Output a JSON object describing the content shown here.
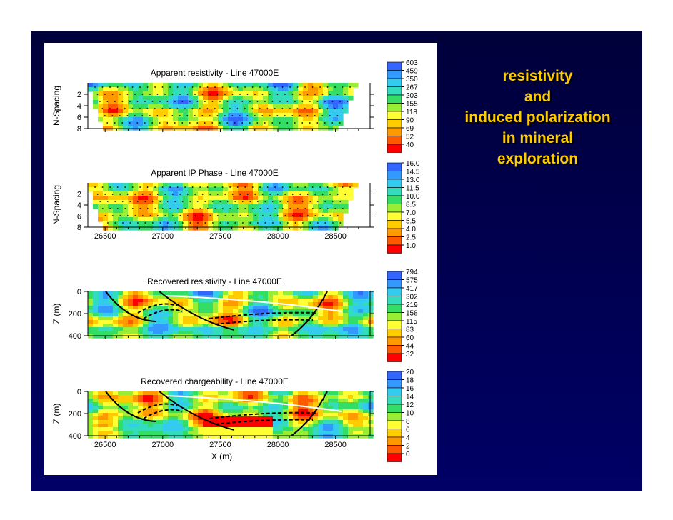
{
  "slide": {
    "side_title_lines": [
      "resistivity",
      "and",
      "induced polarization",
      "in mineral",
      "exploration"
    ]
  },
  "colors": {
    "background": "#000050",
    "side_title": "#ffcc00",
    "panel": "#ffffff"
  },
  "chart_data": [
    {
      "type": "heatmap",
      "title": "Apparent resistivity - Line 47000E",
      "ylabel": "N-Spacing",
      "xlabel": "",
      "xlim": [
        26350,
        28800
      ],
      "ylim": [
        8,
        0
      ],
      "y_ticks": [
        "2",
        "4",
        "6",
        "8"
      ],
      "x_ticks": [],
      "colorbar": [
        "603",
        "459",
        "350",
        "267",
        "203",
        "155",
        "118",
        "90",
        "69",
        "52",
        "40"
      ]
    },
    {
      "type": "heatmap",
      "title": "Apparent IP Phase - Line 47000E",
      "ylabel": "N-Spacing",
      "xlabel": "",
      "xlim": [
        26350,
        28800
      ],
      "ylim": [
        8,
        0
      ],
      "y_ticks": [
        "2",
        "4",
        "6",
        "8"
      ],
      "x_ticks": [
        "26500",
        "27000",
        "27500",
        "28000",
        "28500"
      ],
      "colorbar": [
        "16.0",
        "14.5",
        "13.0",
        "11.5",
        "10.0",
        "8.5",
        "7.0",
        "5.5",
        "4.0",
        "2.5",
        "1.0"
      ]
    },
    {
      "type": "heatmap",
      "title": "Recovered resistivity - Line 47000E",
      "ylabel": "Z (m)",
      "xlabel": "",
      "xlim": [
        26350,
        28800
      ],
      "ylim": [
        400,
        0
      ],
      "y_ticks": [
        "0",
        "200",
        "400"
      ],
      "x_ticks": [],
      "colorbar": [
        "794",
        "575",
        "417",
        "302",
        "219",
        "158",
        "115",
        "83",
        "60",
        "44",
        "32"
      ]
    },
    {
      "type": "heatmap",
      "title": "Recovered chargeability - Line 47000E",
      "ylabel": "Z (m)",
      "xlabel": "X (m)",
      "xlim": [
        26350,
        28800
      ],
      "ylim": [
        400,
        0
      ],
      "y_ticks": [
        "0",
        "200",
        "400"
      ],
      "x_ticks": [
        "26500",
        "27000",
        "27500",
        "28000",
        "28500"
      ],
      "colorbar": [
        "20",
        "18",
        "16",
        "14",
        "12",
        "10",
        "8",
        "6",
        "4",
        "2",
        "0"
      ]
    }
  ]
}
